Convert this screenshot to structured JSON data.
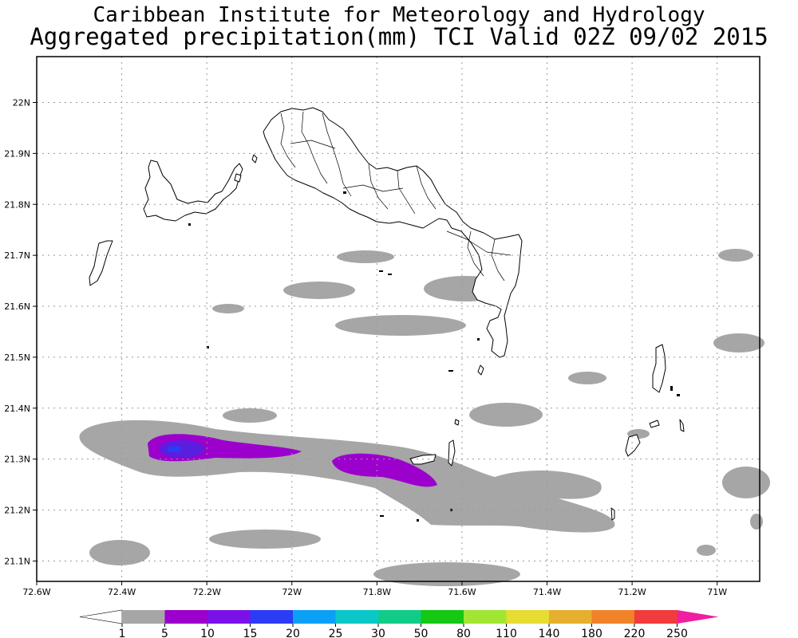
{
  "title": {
    "line1": "Caribbean Institute for Meteorology and Hydrology",
    "line2": "Aggregated precipitation(mm) TCI Valid 02Z 09/02 2015"
  },
  "map": {
    "lon_range": [
      -72.6,
      -70.9
    ],
    "lat_range": [
      21.06,
      22.09
    ],
    "lon_ticks": [
      {
        "value": -72.6,
        "label": "72.6W"
      },
      {
        "value": -72.4,
        "label": "72.4W"
      },
      {
        "value": -72.2,
        "label": "72.2W"
      },
      {
        "value": -72.0,
        "label": "72W"
      },
      {
        "value": -71.8,
        "label": "71.8W"
      },
      {
        "value": -71.6,
        "label": "71.6W"
      },
      {
        "value": -71.4,
        "label": "71.4W"
      },
      {
        "value": -71.2,
        "label": "71.2W"
      },
      {
        "value": -71.0,
        "label": "71W"
      }
    ],
    "lat_ticks": [
      {
        "value": 22.0,
        "label": "22N"
      },
      {
        "value": 21.9,
        "label": "21.9N"
      },
      {
        "value": 21.8,
        "label": "21.8N"
      },
      {
        "value": 21.7,
        "label": "21.7N"
      },
      {
        "value": 21.6,
        "label": "21.6N"
      },
      {
        "value": 21.5,
        "label": "21.5N"
      },
      {
        "value": 21.4,
        "label": "21.4N"
      },
      {
        "value": 21.3,
        "label": "21.3N"
      },
      {
        "value": 21.2,
        "label": "21.2N"
      },
      {
        "value": 21.1,
        "label": "21.1N"
      }
    ],
    "grid": true
  },
  "colorbar": {
    "labels": [
      "1",
      "5",
      "10",
      "15",
      "20",
      "25",
      "30",
      "50",
      "80",
      "110",
      "140",
      "180",
      "220",
      "250"
    ],
    "colors": [
      "#ffffff",
      "#a6a6a6",
      "#9b00cc",
      "#7a12e8",
      "#2b3cf5",
      "#0aa0f5",
      "#0bc8c8",
      "#10cc88",
      "#14c814",
      "#a0e632",
      "#e6dc32",
      "#e6af2d",
      "#f08228",
      "#f03c3c",
      "#f01ea0"
    ]
  },
  "colors": {
    "light_rain": "#a6a6a6",
    "moderate_rain": "#9b00cc",
    "heavy_rain": "#5a1ee0",
    "core_rain": "#2b3cf5"
  }
}
